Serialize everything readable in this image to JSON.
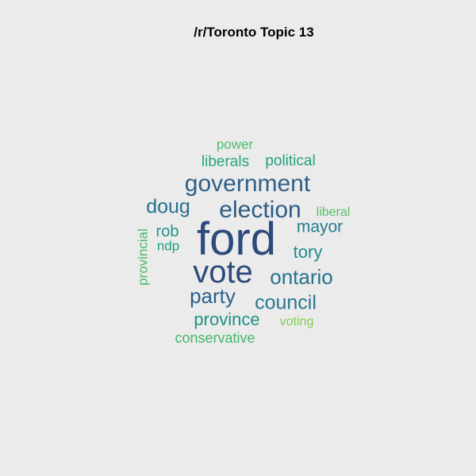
{
  "title": "/r/Toronto Topic 13",
  "words": [
    {
      "text": "ford",
      "weight": 1.0,
      "color": "#2c4a7c"
    },
    {
      "text": "vote",
      "weight": 0.8,
      "color": "#2d4a7d"
    },
    {
      "text": "government",
      "weight": 0.62,
      "color": "#2f5f87"
    },
    {
      "text": "election",
      "weight": 0.62,
      "color": "#2d5b86"
    },
    {
      "text": "ontario",
      "weight": 0.55,
      "color": "#26718f"
    },
    {
      "text": "party",
      "weight": 0.55,
      "color": "#2e628b"
    },
    {
      "text": "council",
      "weight": 0.52,
      "color": "#267891"
    },
    {
      "text": "doug",
      "weight": 0.52,
      "color": "#286f8c"
    },
    {
      "text": "mayor",
      "weight": 0.45,
      "color": "#247e8f"
    },
    {
      "text": "tory",
      "weight": 0.45,
      "color": "#1f8a8a"
    },
    {
      "text": "province",
      "weight": 0.42,
      "color": "#1f9187"
    },
    {
      "text": "political",
      "weight": 0.38,
      "color": "#24a07f"
    },
    {
      "text": "liberals",
      "weight": 0.38,
      "color": "#25a57d"
    },
    {
      "text": "conservative",
      "weight": 0.36,
      "color": "#45b86a"
    },
    {
      "text": "rob",
      "weight": 0.36,
      "color": "#21928a"
    },
    {
      "text": "ndp",
      "weight": 0.34,
      "color": "#1fa082"
    },
    {
      "text": "provincial",
      "weight": 0.34,
      "color": "#4ab96a"
    },
    {
      "text": "voting",
      "weight": 0.32,
      "color": "#84cc54"
    },
    {
      "text": "liberal",
      "weight": 0.32,
      "color": "#55c064"
    },
    {
      "text": "power",
      "weight": 0.32,
      "color": "#4cbc6a"
    }
  ]
}
